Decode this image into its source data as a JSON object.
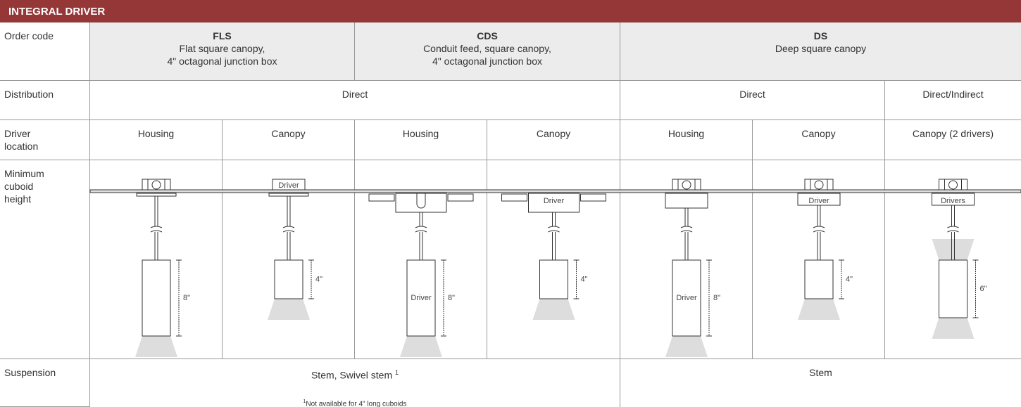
{
  "header": {
    "title": "INTEGRAL DRIVER"
  },
  "row_labels": [
    "Order code",
    "Distribution",
    "Driver location",
    "Minimum cuboid height",
    "Suspension"
  ],
  "order_codes": [
    {
      "code": "FLS",
      "description": [
        "Flat square canopy,",
        "4\" octagonal junction box"
      ]
    },
    {
      "code": "CDS",
      "description": [
        "Conduit feed, square canopy,",
        "4\" octagonal junction box"
      ]
    },
    {
      "code": "DS",
      "description": [
        "Deep square canopy"
      ]
    }
  ],
  "distribution": [
    "Direct",
    "Direct",
    "Direct/Indirect"
  ],
  "driver_location": [
    "Housing",
    "Canopy",
    "Housing",
    "Canopy",
    "Housing",
    "Canopy",
    "Canopy (2 drivers)"
  ],
  "diagrams": [
    {
      "height": "8\""
    },
    {
      "canopy_label": "Driver",
      "height": "4\""
    },
    {
      "body_label": "Driver",
      "height": "8\""
    },
    {
      "canopy_label": "Driver",
      "height": "4\""
    },
    {
      "body_label": "Driver",
      "height": "8\""
    },
    {
      "canopy_label": "Driver",
      "height": "4\""
    },
    {
      "canopy_label": "Drivers",
      "height": "6\""
    }
  ],
  "suspension": [
    {
      "text": "Stem, Swivel stem",
      "footnote_mark": "1",
      "footnote": "Not available for 4\" long cuboids"
    },
    {
      "text": "Stem"
    }
  ]
}
